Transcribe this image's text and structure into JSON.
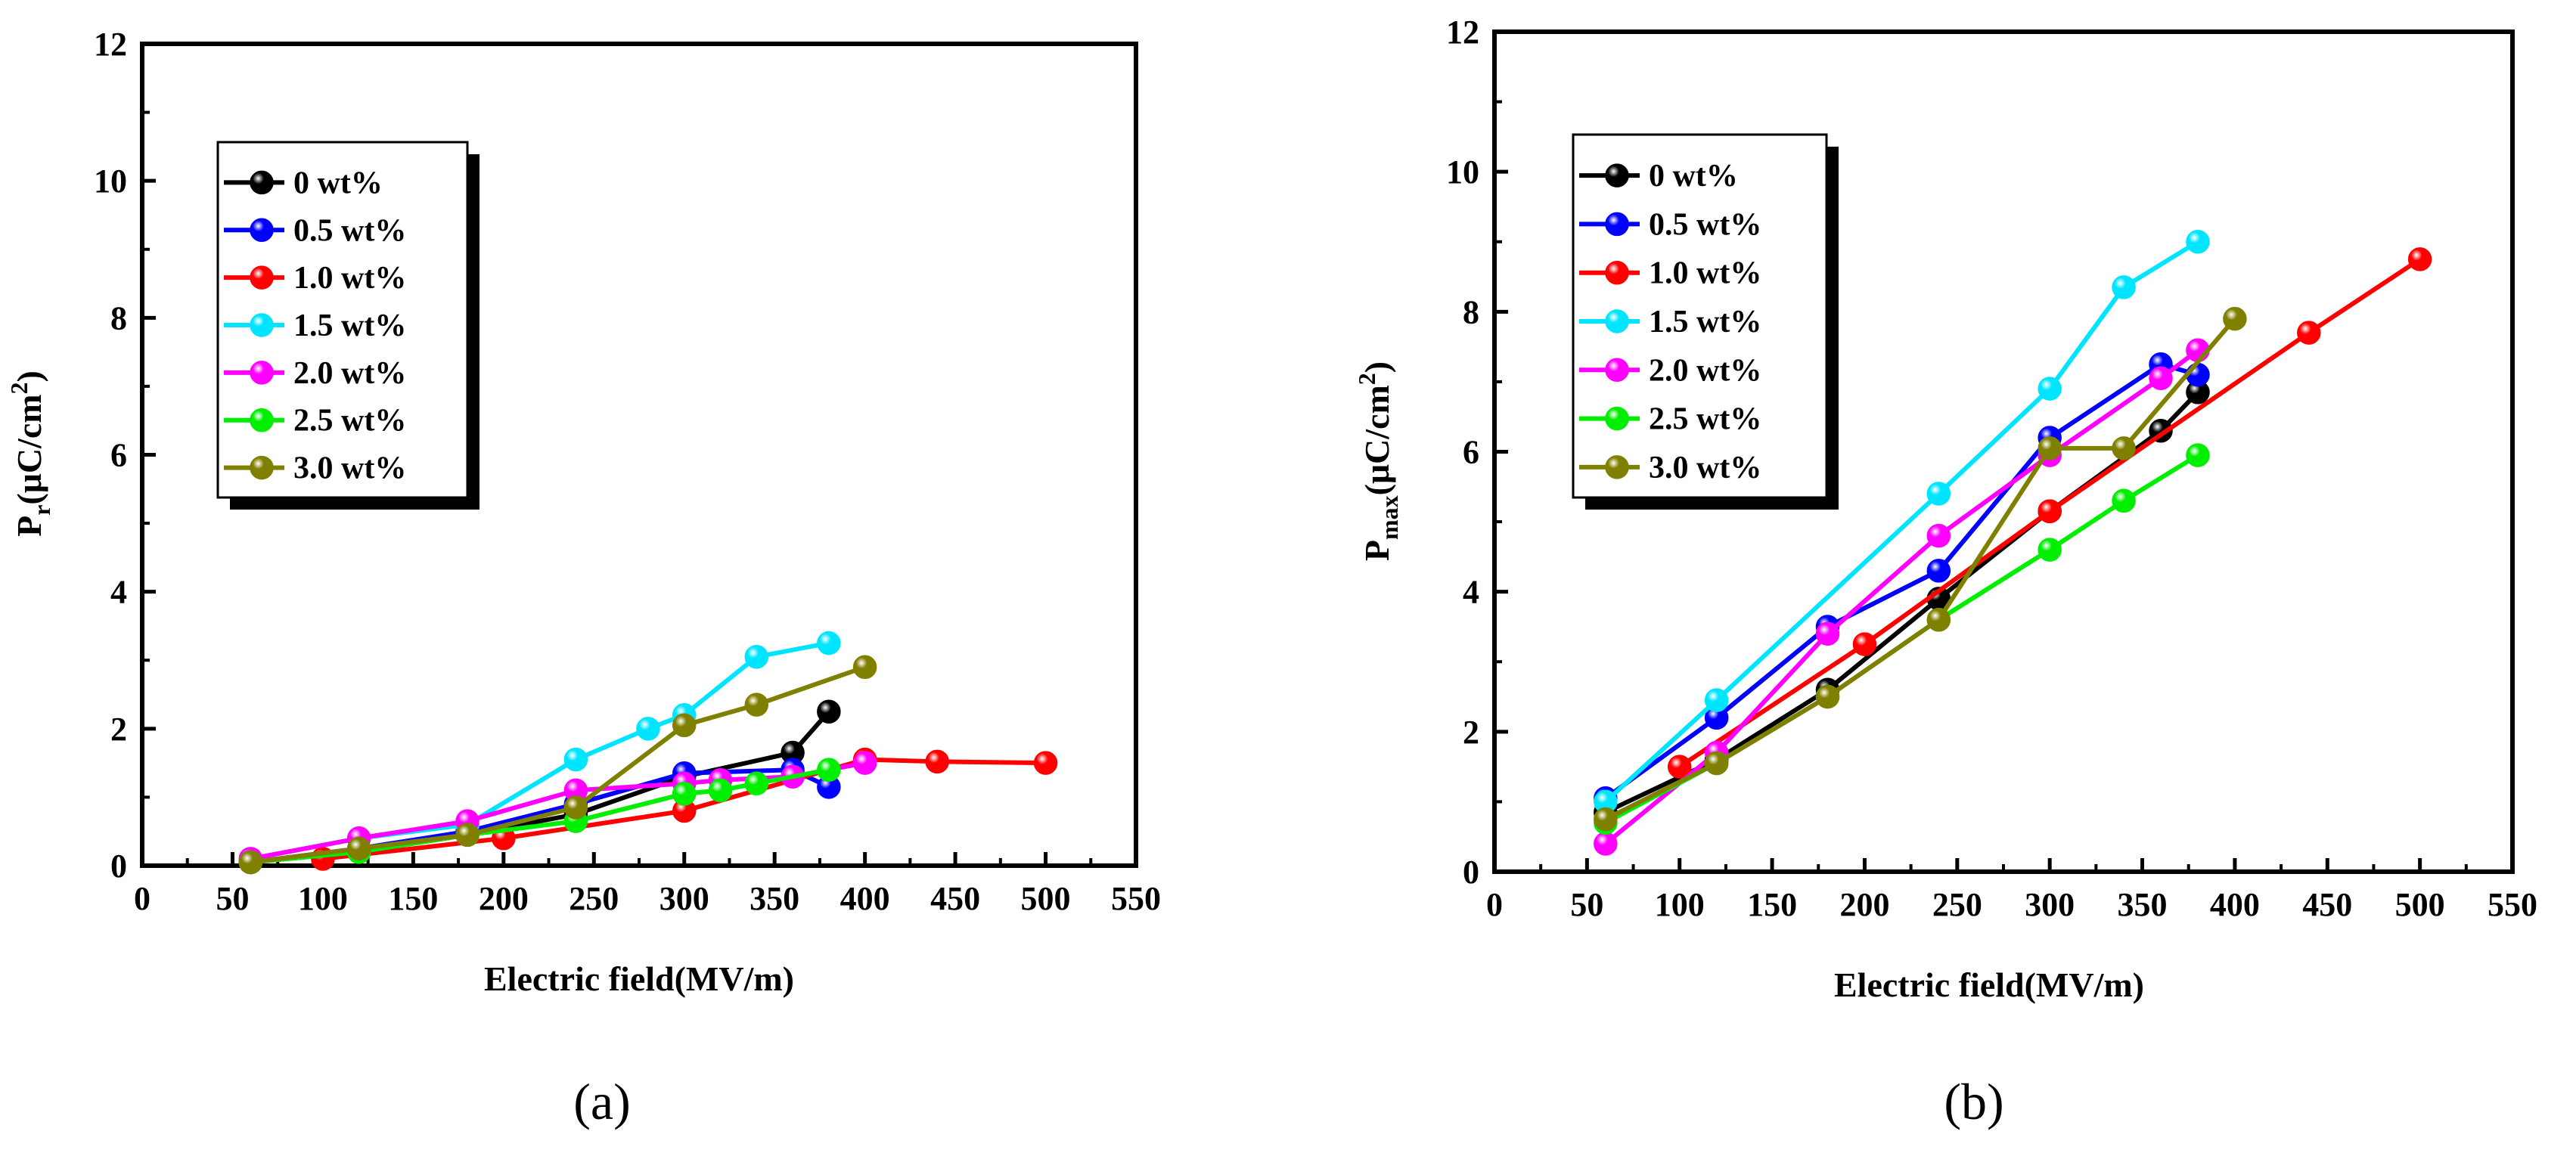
{
  "figure": {
    "panels": [
      "(a)",
      "(b)"
    ]
  },
  "colors": {
    "0 wt%": "#000000",
    "0.5 wt%": "#0000ff",
    "1.0 wt%": "#ff0000",
    "1.5 wt%": "#00e5ff",
    "2.0 wt%": "#ff00ff",
    "2.5 wt%": "#00ee00",
    "3.0 wt%": "#808000"
  },
  "chart_data": [
    {
      "type": "line",
      "panel": "(a)",
      "xlabel": "Electric field(MV/m)",
      "ylabel": {
        "main": "P",
        "sub": "r",
        "unit_pre": "(μC/cm",
        "unit_sup": "2",
        "unit_post": ")"
      },
      "xlim": [
        0,
        550
      ],
      "ylim": [
        0,
        12
      ],
      "xticks": [
        "0",
        "50",
        "100",
        "150",
        "200",
        "250",
        "300",
        "350",
        "400",
        "450",
        "500",
        "550"
      ],
      "yticks": [
        "0",
        "2",
        "4",
        "6",
        "8",
        "10",
        "12"
      ],
      "grid": false,
      "legend": "top-left",
      "series": [
        {
          "name": "0 wt%",
          "x": [
            60,
            120,
            180,
            240,
            300,
            360,
            380
          ],
          "y": [
            0.05,
            0.2,
            0.45,
            0.75,
            1.3,
            1.65,
            2.25
          ]
        },
        {
          "name": "0.5 wt%",
          "x": [
            60,
            120,
            180,
            240,
            300,
            360,
            380
          ],
          "y": [
            0.05,
            0.25,
            0.5,
            0.9,
            1.35,
            1.4,
            1.15
          ]
        },
        {
          "name": "1.0 wt%",
          "x": [
            100,
            200,
            300,
            400,
            440,
            500
          ],
          "y": [
            0.1,
            0.4,
            0.8,
            1.55,
            1.52,
            1.5
          ]
        },
        {
          "name": "1.5 wt%",
          "x": [
            60,
            120,
            180,
            240,
            280,
            300,
            340,
            380
          ],
          "y": [
            0.1,
            0.4,
            0.6,
            1.55,
            2.0,
            2.2,
            3.05,
            3.25
          ]
        },
        {
          "name": "2.0 wt%",
          "x": [
            60,
            120,
            180,
            240,
            300,
            320,
            360,
            400
          ],
          "y": [
            0.1,
            0.4,
            0.65,
            1.1,
            1.2,
            1.25,
            1.3,
            1.5
          ]
        },
        {
          "name": "2.5 wt%",
          "x": [
            60,
            120,
            180,
            240,
            300,
            320,
            340,
            380
          ],
          "y": [
            0.05,
            0.2,
            0.45,
            0.65,
            1.05,
            1.1,
            1.2,
            1.4
          ]
        },
        {
          "name": "3.0 wt%",
          "x": [
            60,
            120,
            180,
            240,
            300,
            340,
            400
          ],
          "y": [
            0.05,
            0.25,
            0.45,
            0.85,
            2.05,
            2.35,
            2.9
          ]
        }
      ]
    },
    {
      "type": "line",
      "panel": "(b)",
      "xlabel": "Electric field(MV/m)",
      "ylabel": {
        "main": "P",
        "sub": "max",
        "unit_pre": "(μC/cm",
        "unit_sup": "2",
        "unit_post": ")"
      },
      "xlim": [
        0,
        550
      ],
      "ylim": [
        0,
        12
      ],
      "xticks": [
        "0",
        "50",
        "100",
        "150",
        "200",
        "250",
        "300",
        "350",
        "400",
        "450",
        "500",
        "550"
      ],
      "yticks": [
        "0",
        "2",
        "4",
        "6",
        "8",
        "10",
        "12"
      ],
      "grid": false,
      "legend": "top-left",
      "series": [
        {
          "name": "0 wt%",
          "x": [
            60,
            120,
            180,
            240,
            300,
            360,
            380
          ],
          "y": [
            0.85,
            1.6,
            2.6,
            3.9,
            5.15,
            6.3,
            6.85
          ]
        },
        {
          "name": "0.5 wt%",
          "x": [
            60,
            120,
            180,
            240,
            300,
            360,
            380
          ],
          "y": [
            1.05,
            2.2,
            3.5,
            4.3,
            6.2,
            7.25,
            7.1
          ]
        },
        {
          "name": "1.0 wt%",
          "x": [
            100,
            200,
            300,
            440,
            500
          ],
          "y": [
            1.5,
            3.25,
            5.15,
            7.7,
            8.75
          ]
        },
        {
          "name": "1.5 wt%",
          "x": [
            60,
            120,
            240,
            300,
            340,
            380
          ],
          "y": [
            1.0,
            2.45,
            5.4,
            6.9,
            8.35,
            9.0
          ]
        },
        {
          "name": "2.0 wt%",
          "x": [
            60,
            120,
            180,
            240,
            300,
            360,
            380
          ],
          "y": [
            0.4,
            1.7,
            3.4,
            4.8,
            5.95,
            7.05,
            7.45
          ]
        },
        {
          "name": "2.5 wt%",
          "x": [
            60,
            120,
            180,
            240,
            300,
            340,
            380
          ],
          "y": [
            0.7,
            1.55,
            2.5,
            3.6,
            4.6,
            5.3,
            5.95
          ]
        },
        {
          "name": "3.0 wt%",
          "x": [
            60,
            120,
            180,
            240,
            300,
            340,
            400
          ],
          "y": [
            0.75,
            1.55,
            2.5,
            3.6,
            6.05,
            6.05,
            7.9
          ]
        }
      ]
    }
  ]
}
